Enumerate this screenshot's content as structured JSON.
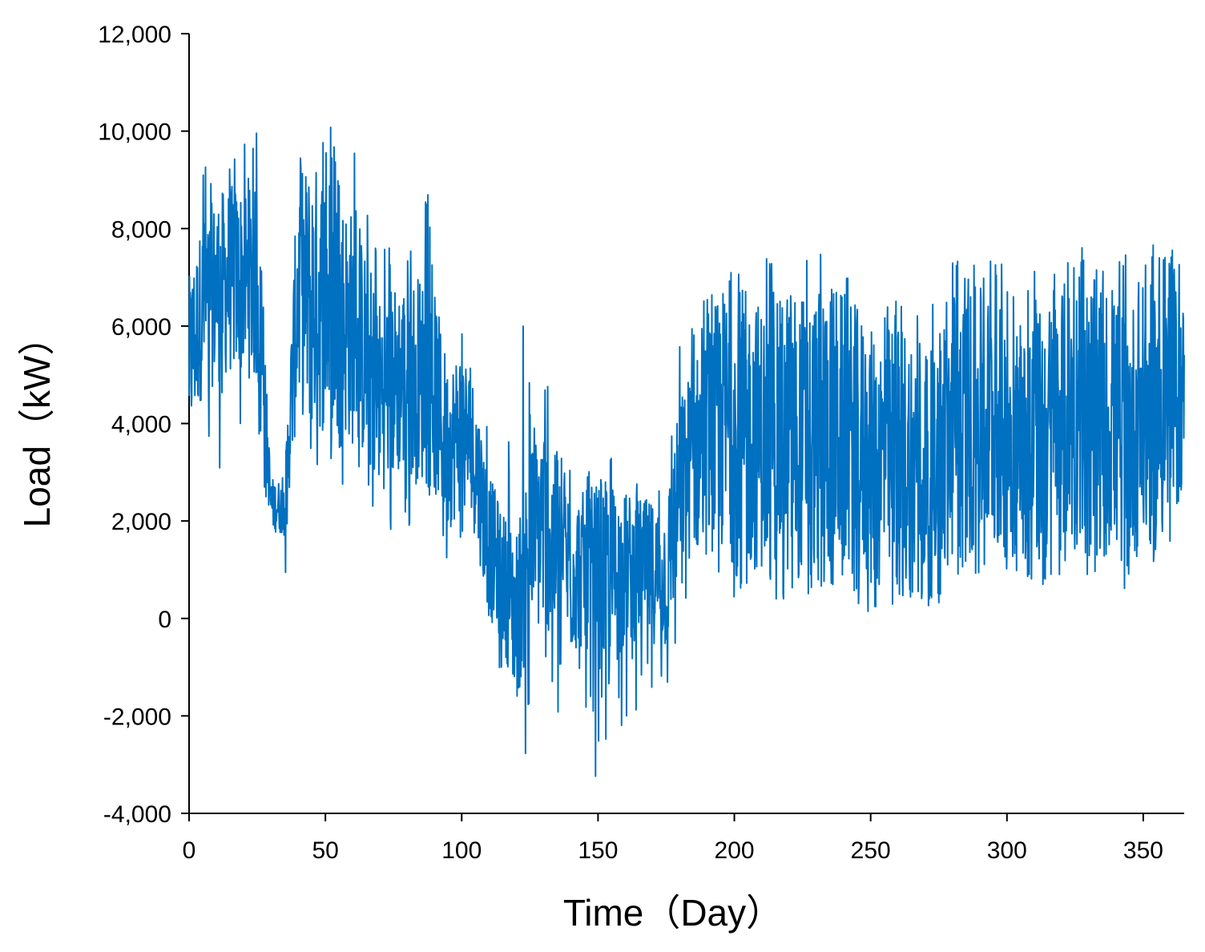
{
  "chart_data": {
    "type": "line",
    "title": "",
    "xlabel": "Time（Day）",
    "ylabel": "Load（kW）",
    "xlim": [
      0,
      365
    ],
    "ylim": [
      -4000,
      12000
    ],
    "x_ticks": [
      0,
      50,
      100,
      150,
      200,
      250,
      300,
      350
    ],
    "x_tick_labels": [
      "0",
      "50",
      "100",
      "150",
      "200",
      "250",
      "300",
      "350"
    ],
    "y_ticks": [
      -4000,
      -2000,
      0,
      2000,
      4000,
      6000,
      8000,
      10000,
      12000
    ],
    "y_tick_labels": [
      "-4,000",
      "-2,000",
      "0",
      "2,000",
      "4,000",
      "6,000",
      "8,000",
      "10,000",
      "12,000"
    ],
    "grid": false,
    "legend": "none",
    "series_color": "#0070C0",
    "series": [
      {
        "name": "",
        "envelope_step_days": 5,
        "x": [
          0,
          5,
          10,
          15,
          20,
          25,
          30,
          35,
          40,
          45,
          50,
          55,
          60,
          65,
          70,
          75,
          80,
          85,
          90,
          95,
          100,
          105,
          110,
          115,
          120,
          125,
          130,
          135,
          140,
          145,
          150,
          155,
          160,
          165,
          170,
          175,
          180,
          185,
          190,
          195,
          200,
          205,
          210,
          215,
          220,
          225,
          230,
          235,
          240,
          245,
          250,
          255,
          260,
          265,
          270,
          275,
          280,
          285,
          290,
          295,
          300,
          305,
          310,
          315,
          320,
          325,
          330,
          335,
          340,
          345,
          350,
          355,
          360,
          365
        ],
        "typical_low": [
          3500,
          4600,
          4800,
          5000,
          5000,
          4800,
          1800,
          1700,
          4300,
          3800,
          3800,
          3800,
          3500,
          3200,
          2600,
          2800,
          3000,
          2800,
          2500,
          1800,
          2200,
          1700,
          0,
          -500,
          -1800,
          -500,
          -200,
          -500,
          -800,
          -600,
          -900,
          -1200,
          -600,
          -400,
          -500,
          -700,
          900,
          1300,
          1300,
          1300,
          1100,
          900,
          1000,
          900,
          800,
          900,
          1000,
          1000,
          900,
          900,
          600,
          500,
          500,
          600,
          600,
          200,
          1000,
          1100,
          1400,
          1400,
          1200,
          1200,
          1000,
          1100,
          1400,
          1500,
          1400,
          1300,
          1300,
          1200,
          1300,
          1400,
          1600,
          2800
        ],
        "typical_high": [
          7000,
          8200,
          8700,
          8900,
          8900,
          8800,
          2900,
          2800,
          9300,
          9300,
          9400,
          8800,
          8400,
          7500,
          6600,
          6900,
          7000,
          7100,
          6700,
          5200,
          5700,
          4800,
          3000,
          2200,
          1800,
          3500,
          4200,
          3200,
          2700,
          2600,
          2800,
          2800,
          2600,
          2500,
          2400,
          2400,
          4500,
          5300,
          5900,
          6800,
          6900,
          6700,
          6500,
          6400,
          6900,
          6700,
          6600,
          7000,
          6700,
          6400,
          5900,
          6000,
          6200,
          6000,
          5900,
          5000,
          6900,
          6800,
          6800,
          6700,
          6200,
          6000,
          6300,
          6500,
          6900,
          7000,
          7000,
          6900,
          6600,
          6500,
          6800,
          6900,
          7100,
          6500
        ],
        "peak_max": [
          7700,
          9800,
          9800,
          9700,
          9700,
          10200,
          3000,
          3000,
          9700,
          10100,
          10200,
          10100,
          10100,
          8600,
          7800,
          7600,
          7600,
          8600,
          9700,
          6200,
          6200,
          5000,
          4000,
          1900,
          6300,
          5800,
          5500,
          3500,
          3200,
          3300,
          3600,
          3400,
          3100,
          2800,
          2700,
          2600,
          5700,
          6300,
          6900,
          7700,
          7300,
          7200,
          7500,
          7400,
          7600,
          7800,
          7700,
          8100,
          8000,
          7600,
          6800,
          6500,
          6800,
          6600,
          6700,
          6500,
          7500,
          7700,
          7800,
          7600,
          7200,
          7000,
          7200,
          7300,
          7700,
          7700,
          7800,
          7700,
          7600,
          7400,
          7600,
          7700,
          7800,
          7000
        ],
        "trough_min": [
          1400,
          3800,
          3000,
          2300,
          3900,
          4000,
          1500,
          600,
          3200,
          3100,
          3000,
          3200,
          1400,
          1200,
          1200,
          1800,
          1900,
          1500,
          1100,
          1100,
          1500,
          1100,
          -1200,
          -2800,
          -3800,
          -2800,
          -2600,
          -3100,
          -3100,
          -3000,
          -3300,
          -2500,
          -2100,
          -2100,
          -2000,
          -3200,
          100,
          600,
          500,
          700,
          400,
          300,
          300,
          400,
          300,
          400,
          500,
          500,
          400,
          200,
          100,
          100,
          0,
          200,
          300,
          0,
          500,
          600,
          900,
          800,
          700,
          700,
          600,
          700,
          900,
          1000,
          800,
          700,
          600,
          600,
          700,
          800,
          1400,
          2600
        ]
      }
    ]
  }
}
